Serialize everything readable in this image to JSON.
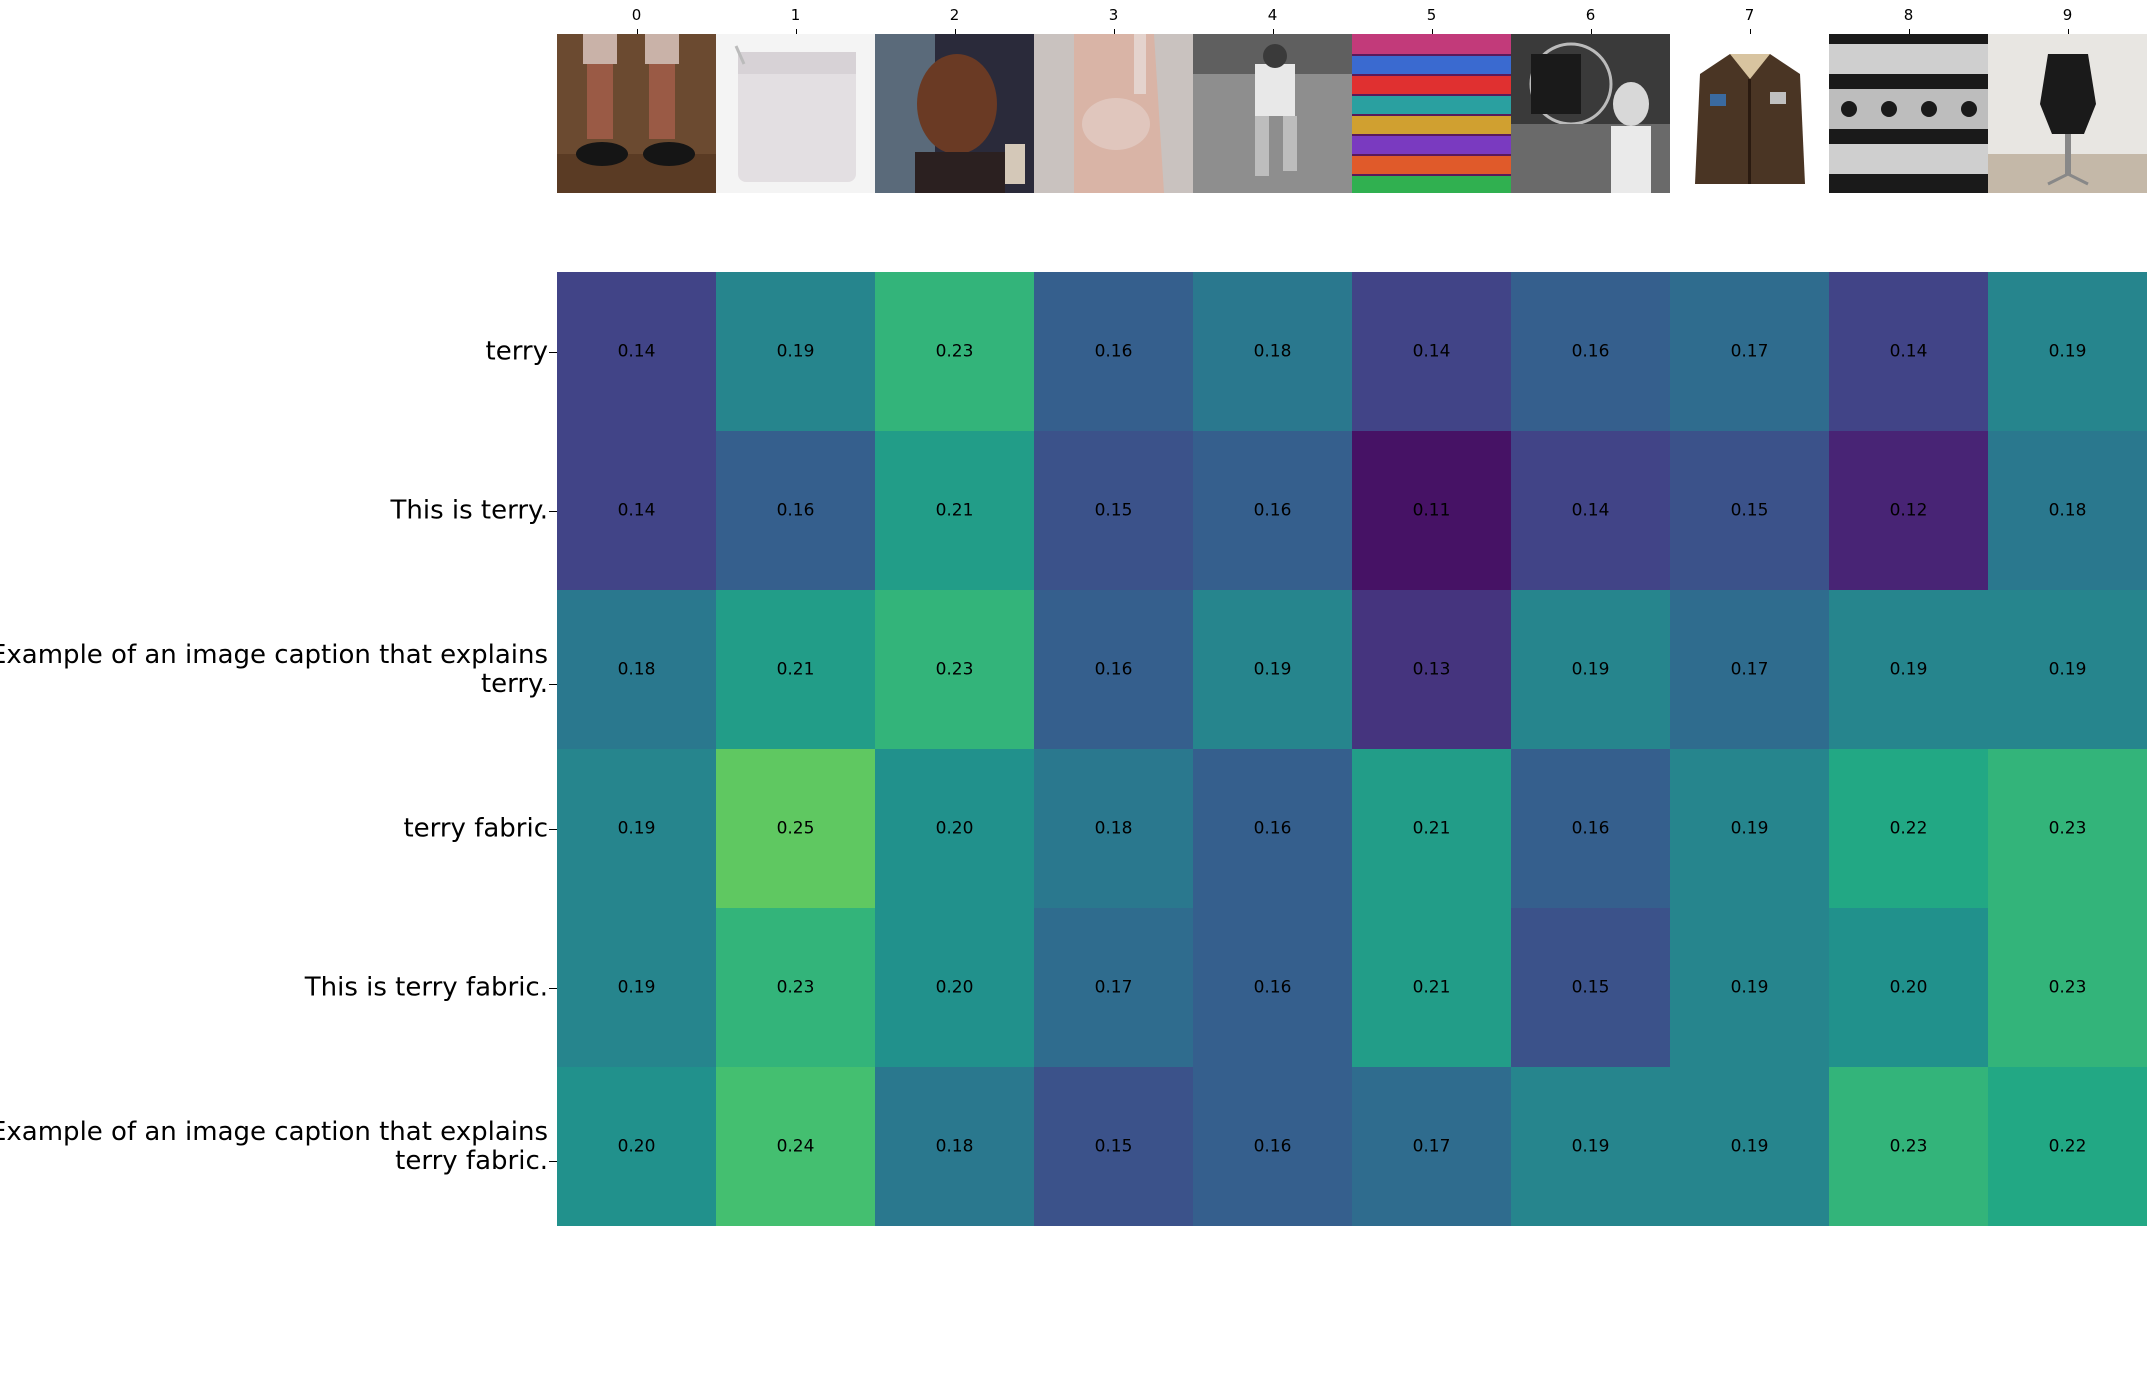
{
  "chart_data": {
    "type": "heatmap",
    "title": "",
    "xlabel": "",
    "ylabel": "",
    "x_tick_labels": [
      "0",
      "1",
      "2",
      "3",
      "4",
      "5",
      "6",
      "7",
      "8",
      "9"
    ],
    "y_labels": [
      [
        "terry"
      ],
      [
        "This is terry."
      ],
      [
        "Example of an image caption that explains",
        "terry."
      ],
      [
        "terry fabric"
      ],
      [
        "This is terry fabric."
      ],
      [
        "Example of an image caption that explains",
        "terry fabric."
      ]
    ],
    "values": [
      [
        0.14,
        0.19,
        0.23,
        0.16,
        0.18,
        0.14,
        0.16,
        0.17,
        0.14,
        0.19
      ],
      [
        0.14,
        0.16,
        0.21,
        0.15,
        0.16,
        0.11,
        0.14,
        0.15,
        0.12,
        0.18
      ],
      [
        0.18,
        0.21,
        0.23,
        0.16,
        0.19,
        0.13,
        0.19,
        0.17,
        0.19,
        0.19
      ],
      [
        0.19,
        0.25,
        0.2,
        0.18,
        0.16,
        0.21,
        0.16,
        0.19,
        0.22,
        0.23
      ],
      [
        0.19,
        0.23,
        0.2,
        0.17,
        0.16,
        0.21,
        0.15,
        0.19,
        0.2,
        0.23
      ],
      [
        0.2,
        0.24,
        0.18,
        0.15,
        0.16,
        0.17,
        0.19,
        0.19,
        0.23,
        0.22
      ]
    ],
    "value_format": "2 decimals",
    "colormap": "viridis",
    "color_range": [
      0.1,
      0.3
    ],
    "column_images": [
      "legs-in-knitted-leg-warmers-and-black-shoes",
      "white-terry-washcloth-mitt",
      "man-portrait",
      "torso-in-lace-bra",
      "runner-black-and-white-photo",
      "stacked-striped-colorful-fabrics",
      "black-and-white-film-still-woman",
      "brown-leather-jacket-with-fur-collar",
      "black-and-white-lace-pattern",
      "dress-form-mannequin"
    ]
  }
}
